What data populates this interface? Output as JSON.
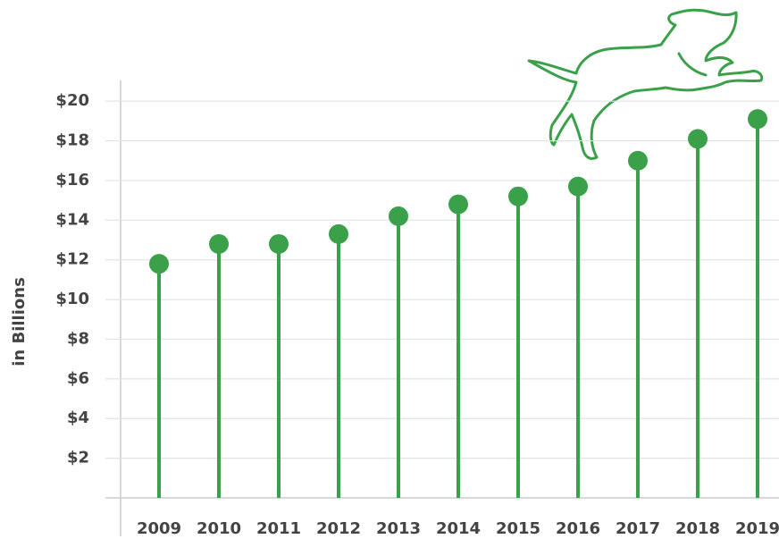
{
  "chart_data": {
    "type": "lollipop",
    "y_label": "in Billions",
    "categories": [
      "2009",
      "2010",
      "2011",
      "2012",
      "2013",
      "2014",
      "2015",
      "2016",
      "2017",
      "2018",
      "2019"
    ],
    "values": [
      11.8,
      12.8,
      12.8,
      13.3,
      14.2,
      14.8,
      15.2,
      15.7,
      17.0,
      18.1,
      19.1
    ],
    "color": "#3aa14a",
    "ylim": [
      0,
      21
    ],
    "yticks": [
      {
        "value": 2,
        "label": "$2"
      },
      {
        "value": 4,
        "label": "$4"
      },
      {
        "value": 6,
        "label": "$6"
      },
      {
        "value": 8,
        "label": "$8"
      },
      {
        "value": 10,
        "label": "$10"
      },
      {
        "value": 12,
        "label": "$12"
      },
      {
        "value": 14,
        "label": "$14"
      },
      {
        "value": 16,
        "label": "$16"
      },
      {
        "value": 18,
        "label": "$18"
      },
      {
        "value": 20,
        "label": "$20"
      }
    ],
    "grid": true
  }
}
